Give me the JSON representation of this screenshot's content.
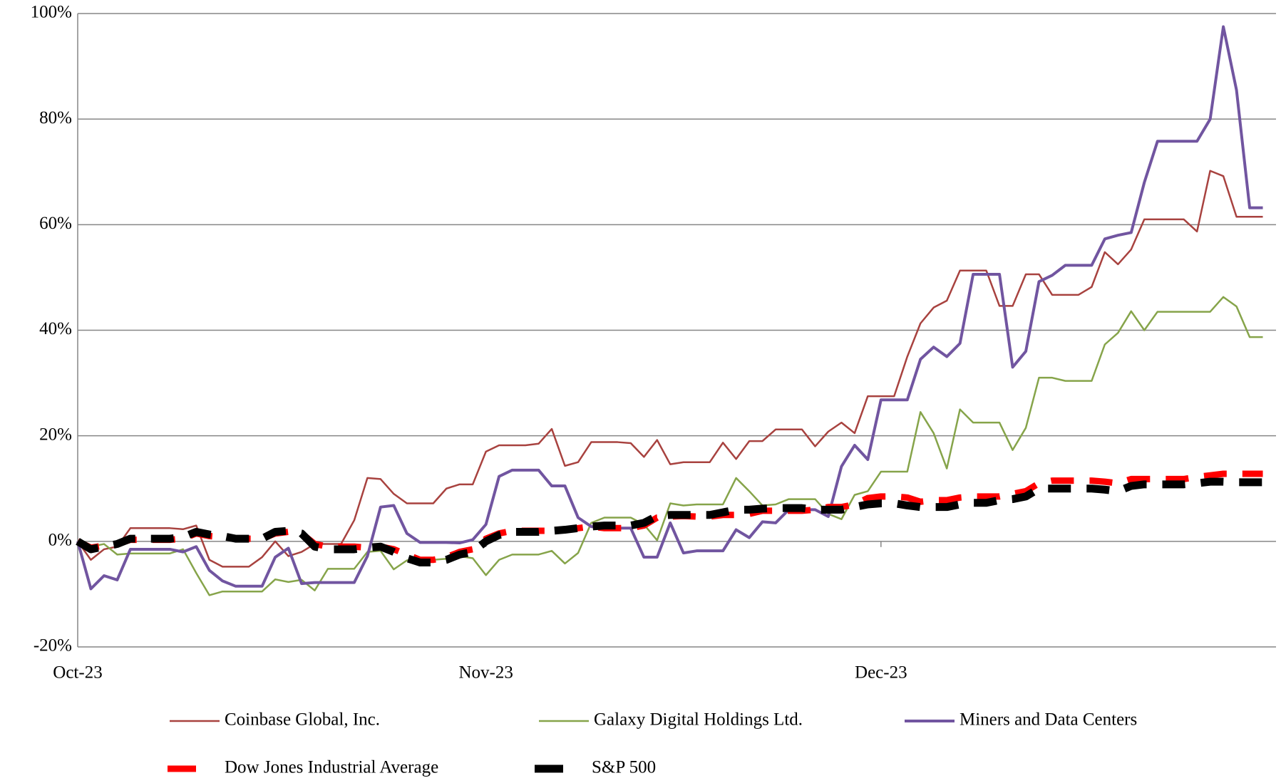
{
  "chart_data": {
    "type": "line",
    "x": [
      0,
      1,
      2,
      3,
      4,
      5,
      6,
      7,
      8,
      9,
      10,
      11,
      12,
      13,
      14,
      15,
      16,
      17,
      18,
      19,
      20,
      21,
      22,
      23,
      24,
      25,
      26,
      27,
      28,
      29,
      30,
      31,
      32,
      33,
      34,
      35,
      36,
      37,
      38,
      39,
      40,
      41,
      42,
      43,
      44,
      45,
      46,
      47,
      48,
      49,
      50,
      51,
      52,
      53,
      54,
      55,
      56,
      57,
      58,
      59,
      60,
      61,
      62,
      63,
      64,
      65,
      66,
      67,
      68,
      69,
      70,
      71,
      72,
      73,
      74,
      75,
      76,
      77,
      78,
      79,
      80,
      81,
      82,
      83,
      84,
      85,
      86,
      87,
      88,
      89,
      90
    ],
    "xlim": [
      0,
      91
    ],
    "xticks": [
      {
        "value": 0,
        "label": "Oct-23"
      },
      {
        "value": 31,
        "label": "Nov-23"
      },
      {
        "value": 61,
        "label": "Dec-23"
      }
    ],
    "ylim": [
      -20,
      100
    ],
    "yticks": [
      {
        "value": -20,
        "label": "-20%"
      },
      {
        "value": 0,
        "label": "0%"
      },
      {
        "value": 20,
        "label": "20%"
      },
      {
        "value": 40,
        "label": "40%"
      },
      {
        "value": 60,
        "label": "60%"
      },
      {
        "value": 80,
        "label": "80%"
      },
      {
        "value": 100,
        "label": "100%"
      }
    ],
    "grid": true,
    "legend": "bottom",
    "series": [
      {
        "name": "Coinbase Global, Inc.",
        "color": "#a8423f",
        "style": "solid",
        "values": [
          0,
          -3.5,
          -1.5,
          -1,
          2.5,
          2.5,
          2.5,
          2.5,
          2.3,
          3,
          -3.5,
          -4.8,
          -4.8,
          -4.8,
          -3,
          0,
          -2.8,
          -2,
          -0.5,
          -0.5,
          -0.5,
          4,
          12,
          11.8,
          9,
          7.2,
          7.2,
          7.2,
          10,
          10.8,
          10.8,
          17,
          18.2,
          18.2,
          18.2,
          18.5,
          21.3,
          14.3,
          15,
          18.8,
          18.8,
          18.8,
          18.6,
          16,
          19.2,
          14.6,
          15,
          15,
          15,
          18.7,
          15.6,
          19,
          19,
          21.2,
          21.2,
          21.2,
          18,
          20.8,
          22.5,
          20.5,
          27.5,
          27.5,
          27.5,
          35,
          41.3,
          44.3,
          45.6,
          51.3,
          51.3,
          51.3,
          44.6,
          44.6,
          50.6,
          50.6,
          46.7,
          46.7,
          46.7,
          48.2,
          54.8,
          52.5,
          55.3,
          61,
          61,
          61,
          61,
          58.7,
          70.2,
          69.2,
          61.5,
          61.5,
          61.5
        ]
      },
      {
        "name": "Galaxy Digital Holdings Ltd.",
        "color": "#86a44a",
        "style": "solid",
        "values": [
          0,
          -1,
          -0.5,
          -2.5,
          -2.3,
          -2.3,
          -2.3,
          -2.3,
          -1.5,
          -6,
          -10.2,
          -9.5,
          -9.5,
          -9.5,
          -9.5,
          -7.2,
          -7.7,
          -7.3,
          -9.3,
          -5.2,
          -5.2,
          -5.2,
          -2,
          -1.8,
          -5.3,
          -3.6,
          -3.5,
          -3.5,
          -3.3,
          -2.8,
          -3.2,
          -6.4,
          -3.5,
          -2.5,
          -2.5,
          -2.5,
          -1.8,
          -4.2,
          -2.2,
          3.5,
          4.5,
          4.5,
          4.5,
          3.2,
          0.2,
          7.2,
          6.8,
          7,
          7,
          7,
          12,
          9.5,
          6.8,
          7,
          8,
          8,
          8,
          5.2,
          4.2,
          8.8,
          9.5,
          13.2,
          13.2,
          13.2,
          24.5,
          20.5,
          13.8,
          25,
          22.5,
          22.5,
          22.5,
          17.3,
          21.5,
          31,
          31,
          30.4,
          30.4,
          30.4,
          37.3,
          39.5,
          43.6,
          40,
          43.5,
          43.5,
          43.5,
          43.5,
          43.5,
          46.3,
          44.5,
          38.7,
          38.7
        ]
      },
      {
        "name": "Miners and Data Centers",
        "color": "#7155a0",
        "style": "solid",
        "values": [
          0,
          -9,
          -6.5,
          -7.3,
          -1.5,
          -1.5,
          -1.5,
          -1.5,
          -2,
          -1,
          -5.5,
          -7.5,
          -8.5,
          -8.5,
          -8.5,
          -3,
          -1.3,
          -8,
          -7.8,
          -7.8,
          -7.8,
          -7.8,
          -2.8,
          6.5,
          6.8,
          1.5,
          -0.2,
          -0.2,
          -0.2,
          -0.3,
          0.3,
          3.2,
          12.3,
          13.5,
          13.5,
          13.5,
          10.5,
          10.5,
          4.5,
          2.8,
          2.5,
          2.5,
          2.5,
          -3,
          -3,
          3.5,
          -2.2,
          -1.8,
          -1.8,
          -1.8,
          2.2,
          0.7,
          3.7,
          3.5,
          6,
          6,
          6,
          4.7,
          14.2,
          18.2,
          15.5,
          26.8,
          26.8,
          26.8,
          34.5,
          36.8,
          35,
          37.5,
          50.6,
          50.6,
          50.6,
          33,
          36,
          49.2,
          50.4,
          52.3,
          52.3,
          52.3,
          57.3,
          58,
          58.5,
          68,
          75.8,
          75.8,
          75.8,
          75.8,
          80,
          97.5,
          85.5,
          63.2,
          63.2
        ]
      },
      {
        "name": "Dow Jones Industrial Average",
        "color": "#ff0000",
        "style": "dashed",
        "values": [
          0,
          -1.2,
          -0.8,
          -0.5,
          0.3,
          0.3,
          0.3,
          0.3,
          0.5,
          1.5,
          1,
          0.8,
          0.5,
          0.5,
          0.5,
          1.5,
          1.8,
          1.5,
          -0.5,
          -1,
          -1,
          -1,
          -1.2,
          -1,
          -1.5,
          -2.5,
          -3.5,
          -3.5,
          -3,
          -2,
          -1.5,
          0.5,
          1.5,
          2,
          2,
          2,
          2,
          2.2,
          2.5,
          2.8,
          2.5,
          2.5,
          2.5,
          3,
          4.5,
          4.7,
          4.8,
          4.7,
          4.7,
          5,
          5,
          5.2,
          5.8,
          5.8,
          5.8,
          5.8,
          6,
          6.5,
          6.5,
          7,
          8.2,
          8.5,
          8.5,
          8.3,
          7.5,
          7.8,
          7.8,
          8.3,
          8.5,
          8.5,
          8.5,
          9,
          9.5,
          11,
          11.5,
          11.5,
          11.5,
          11.5,
          11.3,
          11,
          11.8,
          11.8,
          11.8,
          11.8,
          11.8,
          12.2,
          12.5,
          12.8,
          12.8,
          12.8,
          12.8
        ]
      },
      {
        "name": "S&P 500",
        "color": "#000000",
        "style": "dashed",
        "values": [
          0,
          -1.5,
          -1,
          -0.5,
          0.5,
          0.5,
          0.5,
          0.5,
          0.8,
          1.8,
          1.3,
          1,
          0.5,
          0.5,
          0.5,
          1.8,
          2,
          1.5,
          -1,
          -1.5,
          -1.5,
          -1.5,
          -1.2,
          -1,
          -2,
          -3.2,
          -4,
          -4,
          -3.5,
          -2.5,
          -2,
          0,
          1.2,
          1.8,
          1.8,
          1.8,
          2,
          2.2,
          2.5,
          2.8,
          3,
          3,
          3,
          3.5,
          4.8,
          5,
          5,
          5,
          5,
          5.5,
          6,
          6,
          6.2,
          6.3,
          6.3,
          6.3,
          6,
          6,
          6,
          6.5,
          7,
          7.2,
          7.2,
          6.8,
          6.5,
          6.5,
          6.5,
          7,
          7.3,
          7.3,
          7.8,
          8,
          8.5,
          10,
          10,
          10,
          10,
          10,
          9.8,
          9.5,
          10.5,
          10.8,
          10.8,
          10.8,
          10.8,
          11,
          11.3,
          11.3,
          11.2,
          11.2,
          11.2
        ]
      }
    ]
  }
}
